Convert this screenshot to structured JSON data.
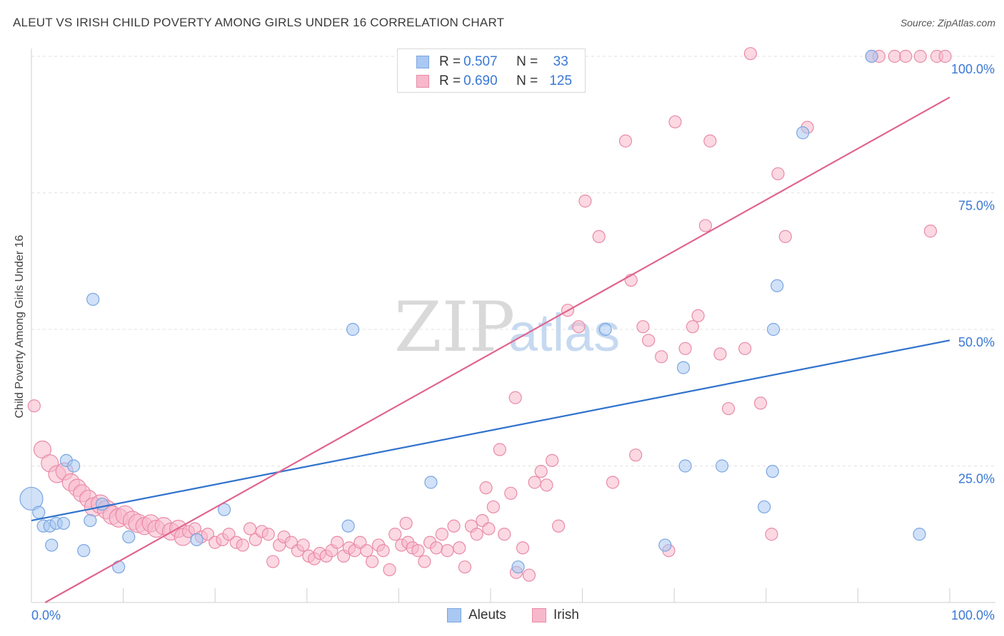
{
  "title": "ALEUT VS IRISH CHILD POVERTY AMONG GIRLS UNDER 16 CORRELATION CHART",
  "source": "Source: ZipAtlas.com",
  "watermark": {
    "zip": "ZIP",
    "atlas": "atlas"
  },
  "legend": {
    "rows": [
      {
        "r_label": "R =",
        "r_value": "0.507",
        "n_label": "N =",
        "n_value": "33"
      },
      {
        "r_label": "R =",
        "r_value": "0.690",
        "n_label": "N =",
        "n_value": "125"
      }
    ]
  },
  "bottom_legend": [
    "Aleuts",
    "Irish"
  ],
  "colors": {
    "aleut_fill": "#a9c8f2",
    "aleut_stroke": "#7aa6e0",
    "aleut_line": "#2f72cc",
    "irish_fill": "#f7b8cb",
    "irish_stroke": "#e98aa8",
    "irish_line": "#e0648f",
    "tick_text": "#3a78d4",
    "grid": "#e2e2e2"
  },
  "chart_data": {
    "type": "scatter",
    "title": "ALEUT VS IRISH CHILD POVERTY AMONG GIRLS UNDER 16 CORRELATION CHART",
    "xlabel": "",
    "ylabel": "Child Poverty Among Girls Under 16",
    "xlim": [
      0,
      100
    ],
    "ylim": [
      0,
      100
    ],
    "x_tick_labels": [
      "0.0%",
      "100.0%"
    ],
    "y_ticks": [
      25,
      50,
      75,
      100
    ],
    "y_tick_labels": [
      "25.0%",
      "50.0%",
      "75.0%",
      "100.0%"
    ],
    "grid": true,
    "series": [
      {
        "name": "Aleuts",
        "trendline": {
          "x": [
            0,
            100
          ],
          "y": [
            15,
            48
          ]
        },
        "points": [
          {
            "x": 0,
            "y": 19,
            "s": 16
          },
          {
            "x": 0.8,
            "y": 16.5
          },
          {
            "x": 1.3,
            "y": 14
          },
          {
            "x": 2,
            "y": 14
          },
          {
            "x": 2.2,
            "y": 10.5
          },
          {
            "x": 2.7,
            "y": 14.5
          },
          {
            "x": 3.5,
            "y": 14.5
          },
          {
            "x": 3.8,
            "y": 26
          },
          {
            "x": 4.6,
            "y": 25
          },
          {
            "x": 5.7,
            "y": 9.5
          },
          {
            "x": 6.4,
            "y": 15
          },
          {
            "x": 6.7,
            "y": 55.5
          },
          {
            "x": 7.7,
            "y": 18
          },
          {
            "x": 9.5,
            "y": 6.5
          },
          {
            "x": 10.6,
            "y": 12
          },
          {
            "x": 18,
            "y": 11.5
          },
          {
            "x": 21,
            "y": 17
          },
          {
            "x": 34.5,
            "y": 14
          },
          {
            "x": 35,
            "y": 50
          },
          {
            "x": 43.5,
            "y": 22
          },
          {
            "x": 53,
            "y": 6.5
          },
          {
            "x": 62.5,
            "y": 50
          },
          {
            "x": 69,
            "y": 10.5
          },
          {
            "x": 71,
            "y": 43
          },
          {
            "x": 71.2,
            "y": 25
          },
          {
            "x": 75.2,
            "y": 25
          },
          {
            "x": 79.8,
            "y": 17.5
          },
          {
            "x": 80.7,
            "y": 24
          },
          {
            "x": 80.8,
            "y": 50
          },
          {
            "x": 81.2,
            "y": 58
          },
          {
            "x": 84,
            "y": 86
          },
          {
            "x": 91.5,
            "y": 100
          },
          {
            "x": 96.7,
            "y": 12.5
          }
        ]
      },
      {
        "name": "Irish",
        "trendline": {
          "x": [
            1.5,
            100
          ],
          "y": [
            0,
            92.5
          ]
        },
        "points": [
          {
            "x": 0.3,
            "y": 36
          },
          {
            "x": 1.2,
            "y": 28,
            "s": 12
          },
          {
            "x": 2,
            "y": 25.5,
            "s": 12
          },
          {
            "x": 2.8,
            "y": 23.5,
            "s": 12
          },
          {
            "x": 3.6,
            "y": 24,
            "s": 12
          },
          {
            "x": 4.3,
            "y": 22,
            "s": 12
          },
          {
            "x": 5,
            "y": 21,
            "s": 12
          },
          {
            "x": 5.5,
            "y": 20,
            "s": 12
          },
          {
            "x": 6.2,
            "y": 19,
            "s": 12
          },
          {
            "x": 6.8,
            "y": 17.5,
            "s": 13
          },
          {
            "x": 7.5,
            "y": 18,
            "s": 13
          },
          {
            "x": 8.2,
            "y": 17,
            "s": 13
          },
          {
            "x": 8.8,
            "y": 16,
            "s": 13
          },
          {
            "x": 9.5,
            "y": 15.5,
            "s": 13
          },
          {
            "x": 10.2,
            "y": 16,
            "s": 13
          },
          {
            "x": 11,
            "y": 15,
            "s": 13
          },
          {
            "x": 11.6,
            "y": 14.5,
            "s": 13
          },
          {
            "x": 12.3,
            "y": 14,
            "s": 12
          },
          {
            "x": 13,
            "y": 14.5,
            "s": 12
          },
          {
            "x": 13.6,
            "y": 13.5,
            "s": 12
          },
          {
            "x": 14.4,
            "y": 14,
            "s": 12
          },
          {
            "x": 15.2,
            "y": 13,
            "s": 12
          },
          {
            "x": 16,
            "y": 13.5,
            "s": 12
          },
          {
            "x": 16.5,
            "y": 12,
            "s": 12
          },
          {
            "x": 17.1,
            "y": 13
          },
          {
            "x": 17.8,
            "y": 13.5
          },
          {
            "x": 18.5,
            "y": 12
          },
          {
            "x": 19.2,
            "y": 12.5
          },
          {
            "x": 20,
            "y": 11
          },
          {
            "x": 20.8,
            "y": 11.5
          },
          {
            "x": 21.5,
            "y": 12.5
          },
          {
            "x": 22.3,
            "y": 11
          },
          {
            "x": 23,
            "y": 10.5
          },
          {
            "x": 23.8,
            "y": 13.5
          },
          {
            "x": 24.4,
            "y": 11.5
          },
          {
            "x": 25.1,
            "y": 13
          },
          {
            "x": 25.8,
            "y": 12.5
          },
          {
            "x": 26.3,
            "y": 7.5
          },
          {
            "x": 27,
            "y": 10.5
          },
          {
            "x": 27.5,
            "y": 12
          },
          {
            "x": 28.3,
            "y": 11
          },
          {
            "x": 29,
            "y": 9.5
          },
          {
            "x": 29.6,
            "y": 10.5
          },
          {
            "x": 30.2,
            "y": 8.5
          },
          {
            "x": 30.8,
            "y": 8
          },
          {
            "x": 31.4,
            "y": 9
          },
          {
            "x": 32.1,
            "y": 8.5
          },
          {
            "x": 32.7,
            "y": 9.5
          },
          {
            "x": 33.3,
            "y": 11
          },
          {
            "x": 34,
            "y": 8.5
          },
          {
            "x": 34.6,
            "y": 10
          },
          {
            "x": 35.2,
            "y": 9.5
          },
          {
            "x": 35.8,
            "y": 11
          },
          {
            "x": 36.5,
            "y": 9.5
          },
          {
            "x": 37.1,
            "y": 7.5
          },
          {
            "x": 37.8,
            "y": 10.5
          },
          {
            "x": 38.3,
            "y": 9.5
          },
          {
            "x": 39,
            "y": 6
          },
          {
            "x": 39.6,
            "y": 12.5
          },
          {
            "x": 40.3,
            "y": 10.5
          },
          {
            "x": 41,
            "y": 11
          },
          {
            "x": 41.5,
            "y": 10
          },
          {
            "x": 42.1,
            "y": 9.5
          },
          {
            "x": 42.8,
            "y": 7.5
          },
          {
            "x": 43.4,
            "y": 11
          },
          {
            "x": 44.1,
            "y": 10
          },
          {
            "x": 44.7,
            "y": 12.5
          },
          {
            "x": 45.3,
            "y": 9.5
          },
          {
            "x": 46,
            "y": 14
          },
          {
            "x": 46.6,
            "y": 10
          },
          {
            "x": 47.2,
            "y": 6.5
          },
          {
            "x": 47.9,
            "y": 14
          },
          {
            "x": 48.5,
            "y": 12.5
          },
          {
            "x": 49.1,
            "y": 15
          },
          {
            "x": 49.8,
            "y": 13.5
          },
          {
            "x": 50.3,
            "y": 17.5
          },
          {
            "x": 51,
            "y": 28
          },
          {
            "x": 51.5,
            "y": 12.5
          },
          {
            "x": 52.2,
            "y": 20
          },
          {
            "x": 52.8,
            "y": 5.5
          },
          {
            "x": 53.5,
            "y": 10
          },
          {
            "x": 54.2,
            "y": 5
          },
          {
            "x": 54.8,
            "y": 22
          },
          {
            "x": 55.5,
            "y": 24
          },
          {
            "x": 56.1,
            "y": 21.5
          },
          {
            "x": 56.7,
            "y": 26
          },
          {
            "x": 57.4,
            "y": 14
          },
          {
            "x": 58.4,
            "y": 53.5
          },
          {
            "x": 59.6,
            "y": 50.5
          },
          {
            "x": 60.3,
            "y": 73.5
          },
          {
            "x": 61.8,
            "y": 67
          },
          {
            "x": 63.3,
            "y": 22
          },
          {
            "x": 64.7,
            "y": 84.5
          },
          {
            "x": 65.3,
            "y": 59
          },
          {
            "x": 65.8,
            "y": 27
          },
          {
            "x": 66.6,
            "y": 50.5
          },
          {
            "x": 67.2,
            "y": 48
          },
          {
            "x": 68.6,
            "y": 45
          },
          {
            "x": 69.4,
            "y": 9.5
          },
          {
            "x": 70.1,
            "y": 88
          },
          {
            "x": 71.2,
            "y": 46.5
          },
          {
            "x": 72,
            "y": 50.5
          },
          {
            "x": 72.6,
            "y": 52.5
          },
          {
            "x": 73.4,
            "y": 69
          },
          {
            "x": 73.9,
            "y": 84.5
          },
          {
            "x": 75,
            "y": 45.5
          },
          {
            "x": 75.9,
            "y": 35.5
          },
          {
            "x": 77.7,
            "y": 46.5
          },
          {
            "x": 78.3,
            "y": 100.5
          },
          {
            "x": 79.4,
            "y": 36.5
          },
          {
            "x": 80.6,
            "y": 12.5
          },
          {
            "x": 81.3,
            "y": 78.5
          },
          {
            "x": 82.1,
            "y": 67
          },
          {
            "x": 84.5,
            "y": 87
          },
          {
            "x": 91.5,
            "y": 100
          },
          {
            "x": 92.3,
            "y": 100
          },
          {
            "x": 94,
            "y": 100
          },
          {
            "x": 95.2,
            "y": 100
          },
          {
            "x": 96.8,
            "y": 100
          },
          {
            "x": 97.9,
            "y": 68
          },
          {
            "x": 98.6,
            "y": 100
          },
          {
            "x": 99.5,
            "y": 100
          },
          {
            "x": 52.7,
            "y": 37.5
          },
          {
            "x": 49.5,
            "y": 21
          },
          {
            "x": 40.8,
            "y": 14.5
          }
        ]
      }
    ]
  }
}
